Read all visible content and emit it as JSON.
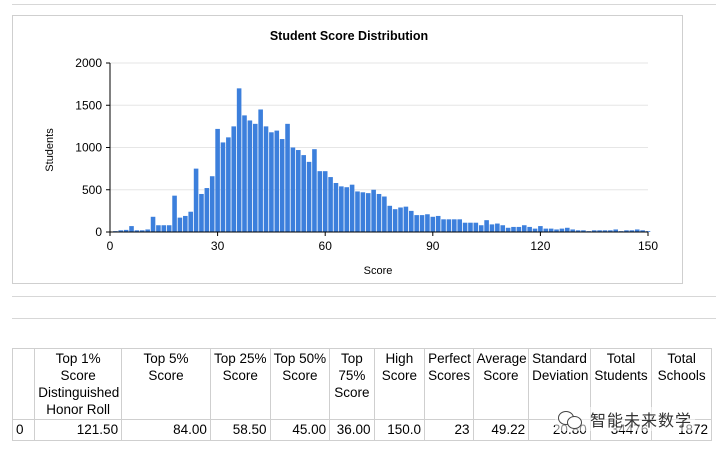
{
  "chart_data": {
    "type": "bar",
    "title": "Student Score Distribution",
    "xlabel": "Score",
    "ylabel": "Students",
    "xlim": [
      0,
      150
    ],
    "ylim": [
      0,
      2000
    ],
    "xticks": [
      "0",
      "30",
      "60",
      "90",
      "120",
      "150"
    ],
    "yticks": [
      "0",
      "500",
      "1000",
      "1500",
      "2000"
    ],
    "bar_color": "#3c7fdc",
    "bin_width": 1.5,
    "x": [
      1.5,
      3,
      4.5,
      6,
      7.5,
      9,
      10.5,
      12,
      13.5,
      15,
      16.5,
      18,
      19.5,
      21,
      22.5,
      24,
      25.5,
      27,
      28.5,
      30,
      31.5,
      33,
      34.5,
      36,
      37.5,
      39,
      40.5,
      42,
      43.5,
      45,
      46.5,
      48,
      49.5,
      51,
      52.5,
      54,
      55.5,
      57,
      58.5,
      60,
      61.5,
      63,
      64.5,
      66,
      67.5,
      69,
      70.5,
      72,
      73.5,
      75,
      76.5,
      78,
      79.5,
      81,
      82.5,
      84,
      85.5,
      87,
      88.5,
      90,
      91.5,
      93,
      94.5,
      96,
      97.5,
      99,
      100.5,
      102,
      103.5,
      105,
      106.5,
      108,
      109.5,
      111,
      112.5,
      114,
      115.5,
      117,
      118.5,
      120,
      121.5,
      123,
      124.5,
      126,
      127.5,
      129,
      130.5,
      132,
      133.5,
      135,
      136.5,
      138,
      139.5,
      141,
      142.5,
      144,
      145.5,
      147,
      148.5,
      150
    ],
    "values": [
      10,
      20,
      25,
      70,
      20,
      20,
      30,
      180,
      80,
      80,
      80,
      430,
      170,
      190,
      240,
      750,
      450,
      520,
      660,
      1220,
      1060,
      1120,
      1250,
      1700,
      1380,
      1320,
      1280,
      1450,
      1250,
      1180,
      1200,
      1100,
      1280,
      1000,
      970,
      910,
      830,
      980,
      720,
      720,
      650,
      580,
      540,
      530,
      560,
      480,
      470,
      460,
      500,
      450,
      420,
      310,
      270,
      290,
      300,
      250,
      200,
      200,
      210,
      180,
      190,
      150,
      150,
      150,
      150,
      110,
      110,
      110,
      80,
      140,
      90,
      100,
      80,
      50,
      60,
      60,
      80,
      60,
      40,
      70,
      40,
      40,
      30,
      40,
      50,
      30,
      20,
      20,
      10,
      20,
      20,
      20,
      20,
      30,
      10,
      20,
      20,
      30,
      20,
      10
    ]
  },
  "table": {
    "headers": [
      "",
      "Top 1% Score Distinguished Honor Roll",
      "Top 5% Score",
      "Top 25% Score",
      "Top 50% Score",
      "Top 75% Score",
      "High Score",
      "Perfect Scores",
      "Average Score",
      "Standard Deviation",
      "Total Students",
      "Total Schools"
    ],
    "row": [
      "0",
      "121.50",
      "84.00",
      "58.50",
      "45.00",
      "36.00",
      "150.0",
      "23",
      "49.22",
      "20.80",
      "34476",
      "1872"
    ]
  },
  "watermark": {
    "text": "智能未来数学"
  }
}
